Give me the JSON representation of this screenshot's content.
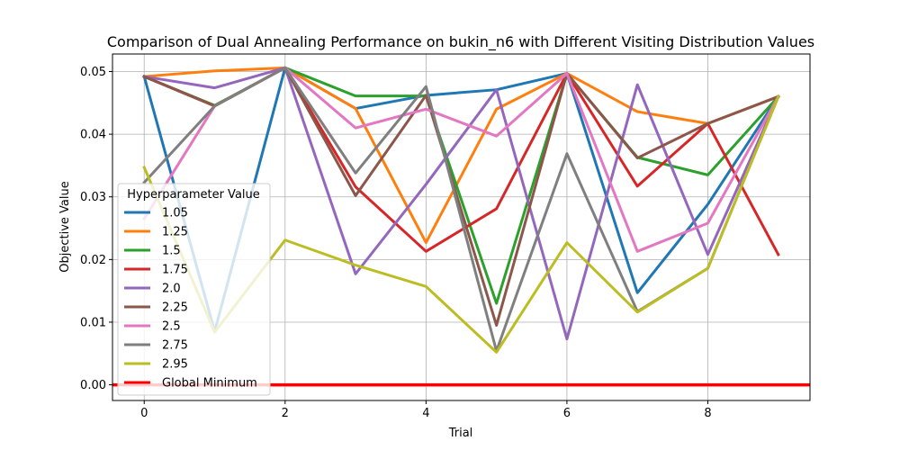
{
  "chart_data": {
    "type": "line",
    "title": "Comparison of Dual Annealing Performance on bukin_n6 with Different Visiting Distribution Values",
    "xlabel": "Trial",
    "ylabel": "Objective Value",
    "xlim": [
      -0.45,
      9.45
    ],
    "ylim": [
      -0.0025,
      0.0528
    ],
    "xticks": [
      0,
      2,
      4,
      6,
      8
    ],
    "yticks": [
      0.0,
      0.01,
      0.02,
      0.03,
      0.04,
      0.05
    ],
    "ytick_labels": [
      "0.00",
      "0.01",
      "0.02",
      "0.03",
      "0.04",
      "0.05"
    ],
    "grid": true,
    "legend": {
      "title": "Hyperparameter Value",
      "placement": "center-left"
    },
    "x": [
      0,
      1,
      2,
      3,
      4,
      5,
      6,
      7,
      8,
      9
    ],
    "series": [
      {
        "name": "1.05",
        "color": "#1f77b4",
        "values": [
          0.0492,
          0.0085,
          0.0506,
          0.0441,
          0.0462,
          0.0471,
          0.0497,
          0.0147,
          0.0288,
          0.046
        ]
      },
      {
        "name": "1.25",
        "color": "#ff7f0e",
        "values": [
          0.0492,
          0.0501,
          0.0506,
          0.0441,
          0.0227,
          0.044,
          0.0497,
          0.0436,
          0.0417,
          0.046
        ]
      },
      {
        "name": "1.5",
        "color": "#2ca02c",
        "values": [
          0.0492,
          0.0446,
          0.0506,
          0.0461,
          0.0461,
          0.013,
          0.0497,
          0.0363,
          0.0335,
          0.046
        ]
      },
      {
        "name": "1.75",
        "color": "#d62728",
        "values": [
          0.0492,
          0.0445,
          0.0506,
          0.0316,
          0.0213,
          0.0281,
          0.0497,
          0.0317,
          0.0417,
          0.0208
        ]
      },
      {
        "name": "2.0",
        "color": "#9467bd",
        "values": [
          0.0492,
          0.0474,
          0.0506,
          0.0177,
          0.032,
          0.0471,
          0.0073,
          0.0479,
          0.0208,
          0.046
        ]
      },
      {
        "name": "2.25",
        "color": "#8c564b",
        "values": [
          0.0492,
          0.0445,
          0.0506,
          0.0302,
          0.0462,
          0.0095,
          0.0497,
          0.0362,
          0.0417,
          0.046
        ]
      },
      {
        "name": "2.5",
        "color": "#e377c2",
        "values": [
          0.0265,
          0.0445,
          0.0506,
          0.041,
          0.044,
          0.0397,
          0.0497,
          0.0213,
          0.0258,
          0.046
        ]
      },
      {
        "name": "2.75",
        "color": "#7f7f7f",
        "values": [
          0.0323,
          0.0445,
          0.0506,
          0.0338,
          0.0476,
          0.0054,
          0.0369,
          0.0117,
          0.0186,
          0.046
        ]
      },
      {
        "name": "2.95",
        "color": "#bcbd22",
        "values": [
          0.0347,
          0.0084,
          0.0231,
          0.0191,
          0.0157,
          0.0052,
          0.0227,
          0.0116,
          0.0186,
          0.046
        ]
      }
    ],
    "reference_lines": [
      {
        "name": "Global Minimum",
        "color": "#ff0000",
        "y": 0.0
      }
    ]
  }
}
